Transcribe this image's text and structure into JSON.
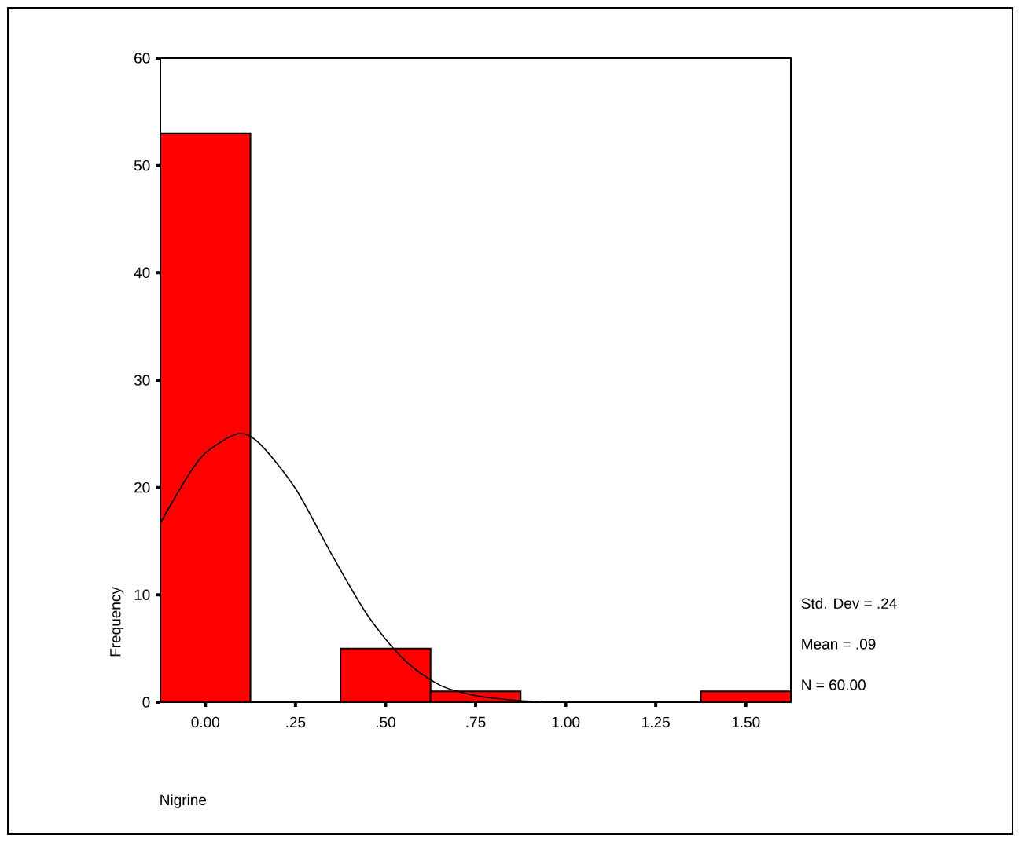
{
  "chart_data": {
    "type": "histogram",
    "xlabel": "Nigrine",
    "ylabel": "Frequency",
    "bins": [
      -0.125,
      0.125,
      0.375,
      0.625,
      0.875,
      1.125,
      1.375,
      1.625
    ],
    "values": [
      53,
      0,
      5,
      1,
      0,
      0,
      1
    ],
    "color": "#ff0000",
    "series": [
      {
        "type": "line",
        "color": "#000000",
        "x": [
          -0.125,
          -0.05,
          0,
          0.09,
          0.15,
          0.25,
          0.35,
          0.45,
          0.55,
          0.65,
          0.75,
          0.85,
          0.95
        ],
        "values": [
          16.7,
          21,
          23.2,
          25,
          24.1,
          19.9,
          13.8,
          8.1,
          4,
          1.6,
          0.6,
          0.2,
          0
        ]
      }
    ],
    "xlim": [
      -0.125,
      1.625
    ],
    "ylim": [
      0,
      60
    ],
    "xticks": [
      {
        "value": 0,
        "label": "0.00"
      },
      {
        "value": 0.25,
        "label": ".25"
      },
      {
        "value": 0.5,
        "label": ".50"
      },
      {
        "value": 0.75,
        "label": ".75"
      },
      {
        "value": 1,
        "label": "1.00"
      },
      {
        "value": 1.25,
        "label": "1.25"
      },
      {
        "value": 1.5,
        "label": "1.50"
      }
    ],
    "yticks": [
      0,
      10,
      20,
      30,
      40,
      50,
      60
    ],
    "annotations": [
      "Std. Dev = .24",
      "Mean = .09",
      "N = 60.00"
    ]
  }
}
